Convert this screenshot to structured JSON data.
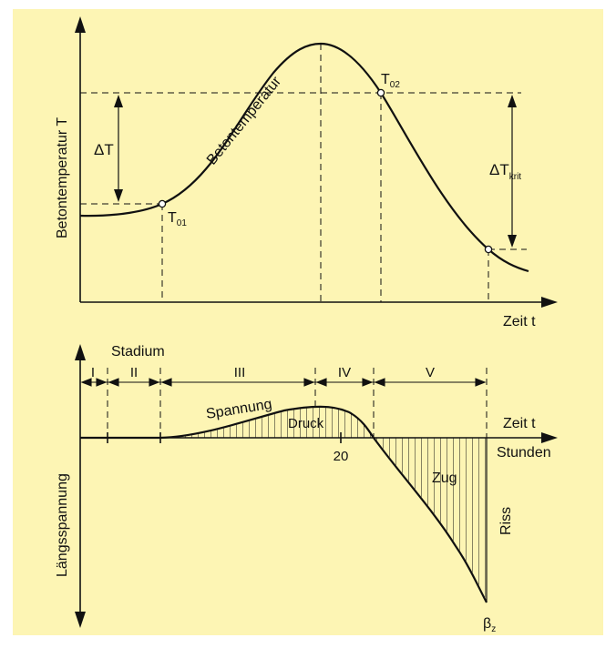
{
  "colors": {
    "background": "#fdf5b4",
    "line": "#111111"
  },
  "top": {
    "y_axis_label": "Betontemperatur T",
    "x_axis_label": "Zeit t",
    "curve_label": "Betontemperatur",
    "t01": "T",
    "t01_sub": "01",
    "t02": "T",
    "t02_sub": "02",
    "delta_t": "ΔT",
    "delta_t_krit": "ΔT",
    "delta_t_krit_sub": "krit"
  },
  "bottom": {
    "y_axis_label": "Längsspannung",
    "stadium_label": "Stadium",
    "stages": [
      "I",
      "II",
      "III",
      "IV",
      "V"
    ],
    "x_axis_label": "Zeit t",
    "x_axis_unit": "Stunden",
    "tick_20": "20",
    "spannung": "Spannung",
    "druck": "Druck",
    "zug": "Zug",
    "riss": "Riss",
    "beta": "β",
    "beta_sub": "z"
  }
}
